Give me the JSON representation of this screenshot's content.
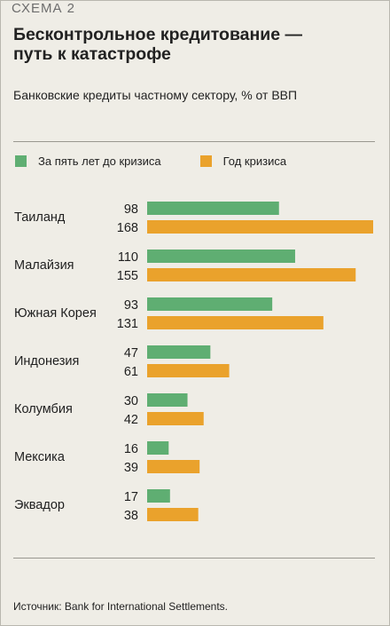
{
  "header": {
    "scheme_label": "СХЕМА 2",
    "title_line1": "Бесконтрольное кредитование —",
    "title_line2": "путь к катастрофе",
    "subtitle": "Банковские кредиты частному сектору, % от ВВП"
  },
  "colors": {
    "series1": "#5fae72",
    "series2": "#eaa22c",
    "background": "#efede6"
  },
  "source": "Источник: Bank for International Settlements.",
  "chart_data": {
    "type": "bar",
    "orientation": "horizontal",
    "title": "Бесконтрольное кредитование — путь к катастрофе",
    "subtitle": "Банковские кредиты частному сектору, % от ВВП",
    "categories": [
      "Таиланд",
      "Малайзия",
      "Южная Корея",
      "Индонезия",
      "Колумбия",
      "Мексика",
      "Эквадор"
    ],
    "series": [
      {
        "name": "За пять лет до кризиса",
        "values": [
          98,
          110,
          93,
          47,
          30,
          16,
          17
        ]
      },
      {
        "name": "Год кризиса",
        "values": [
          168,
          155,
          131,
          61,
          42,
          39,
          38
        ]
      }
    ],
    "xlim": [
      0,
      168
    ],
    "legend": "top-left",
    "grid": false,
    "data_labels": true
  }
}
